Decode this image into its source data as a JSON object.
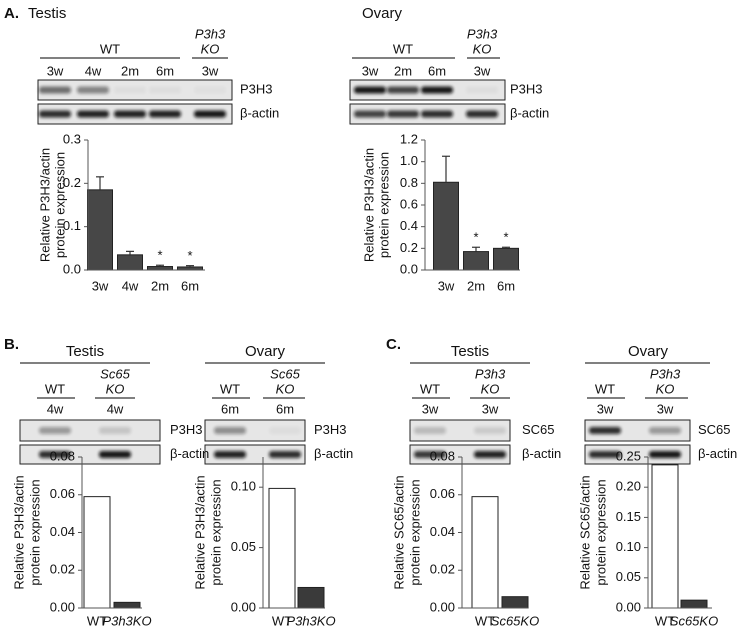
{
  "panel_labels": [
    "A.",
    "B.",
    "C."
  ],
  "blots": [
    {
      "title": "Testis",
      "groups": [
        {
          "label": [
            "WT"
          ],
          "lanes": [
            "3w",
            "4w",
            "2m",
            "6m"
          ]
        },
        {
          "label": [
            "P3h3",
            "KO"
          ],
          "italic": true,
          "lanes": [
            "3w"
          ]
        }
      ],
      "rows": [
        "P3H3",
        "β-actin"
      ]
    },
    {
      "title": "Ovary",
      "groups": [
        {
          "label": [
            "WT"
          ],
          "lanes": [
            "3w",
            "2m",
            "6m"
          ]
        },
        {
          "label": [
            "P3h3",
            "KO"
          ],
          "italic": true,
          "lanes": [
            "3w"
          ]
        }
      ],
      "rows": [
        "P3H3",
        "β-actin"
      ]
    },
    {
      "title": "Testis",
      "groups": [
        {
          "label": [
            "WT"
          ],
          "lanes": [
            "4w"
          ]
        },
        {
          "label": [
            "Sc65",
            "KO"
          ],
          "italic": true,
          "lanes": [
            "4w"
          ]
        }
      ],
      "rows": [
        "P3H3",
        "β-actin"
      ]
    },
    {
      "title": "Ovary",
      "groups": [
        {
          "label": [
            "WT"
          ],
          "lanes": [
            "6m"
          ]
        },
        {
          "label": [
            "Sc65",
            "KO"
          ],
          "italic": true,
          "lanes": [
            "6m"
          ]
        }
      ],
      "rows": [
        "P3H3",
        "β-actin"
      ]
    },
    {
      "title": "Testis",
      "groups": [
        {
          "label": [
            "WT"
          ],
          "lanes": [
            "3w"
          ]
        },
        {
          "label": [
            "P3h3",
            "KO"
          ],
          "italic": true,
          "lanes": [
            "3w"
          ]
        }
      ],
      "rows": [
        "SC65",
        "β-actin"
      ]
    },
    {
      "title": "Ovary",
      "groups": [
        {
          "label": [
            "WT"
          ],
          "lanes": [
            "3w"
          ]
        },
        {
          "label": [
            "P3h3",
            "KO"
          ],
          "italic": true,
          "lanes": [
            "3w"
          ]
        }
      ],
      "rows": [
        "SC65",
        "β-actin"
      ]
    }
  ],
  "chart_data": [
    {
      "type": "bar",
      "y_label": [
        "Relative P3H3/actin",
        "protein expression"
      ],
      "categories": [
        "3w",
        "4w",
        "2m",
        "6m"
      ],
      "values": [
        0.185,
        0.035,
        0.008,
        0.007
      ],
      "errors": [
        0.03,
        0.008,
        0.003,
        0.003
      ],
      "colors": [
        "#474747",
        "#474747",
        "#474747",
        "#474747"
      ],
      "annotations": [
        {
          "category": "2m",
          "text": "*"
        },
        {
          "category": "6m",
          "text": "*"
        }
      ],
      "ylim": [
        0,
        0.3
      ],
      "yticks": [
        {
          "value": 0,
          "label": "0.0"
        },
        0.1,
        0.2,
        0.3
      ]
    },
    {
      "type": "bar",
      "y_label": [
        "Relative P3H3/actin",
        "protein expression"
      ],
      "categories": [
        "3w",
        "2m",
        "6m"
      ],
      "values": [
        0.81,
        0.17,
        0.2
      ],
      "errors": [
        0.24,
        0.04,
        0.01
      ],
      "colors": [
        "#474747",
        "#474747",
        "#474747"
      ],
      "annotations": [
        {
          "category": "2m",
          "text": "*"
        },
        {
          "category": "6m",
          "text": "*"
        }
      ],
      "ylim": [
        0,
        1.2
      ],
      "yticks": [
        {
          "value": 0,
          "label": "0.0"
        },
        0.2,
        0.4,
        0.6,
        0.8,
        {
          "value": 1,
          "label": "1.0"
        },
        1.2
      ]
    },
    {
      "type": "bar",
      "y_label": [
        "Relative P3H3/actin",
        "protein expression"
      ],
      "categories": [
        "WT",
        "P3h3KO"
      ],
      "category_style": [
        "normal",
        "italic"
      ],
      "values": [
        0.059,
        0.003
      ],
      "colors": [
        "#ffffff",
        "#3a3a3a"
      ],
      "ylim": [
        0,
        0.08
      ],
      "yticks": [
        {
          "value": 0,
          "label": "0.00"
        },
        {
          "value": 0.02,
          "label": "0.02"
        },
        {
          "value": 0.04,
          "label": "0.04"
        },
        {
          "value": 0.06,
          "label": "0.06"
        },
        {
          "value": 0.08,
          "label": "0.08"
        }
      ]
    },
    {
      "type": "bar",
      "y_label": [
        "Relative P3H3/actin",
        "protein expression"
      ],
      "categories": [
        "WT",
        "P3h3KO"
      ],
      "category_style": [
        "normal",
        "italic"
      ],
      "values": [
        0.099,
        0.017
      ],
      "colors": [
        "#ffffff",
        "#3a3a3a"
      ],
      "ylim": [
        0,
        0.125
      ],
      "yticks": [
        {
          "value": 0,
          "label": "0.00"
        },
        0.05,
        {
          "value": 0.1,
          "label": "0.10"
        }
      ]
    },
    {
      "type": "bar",
      "y_label": [
        "Relative SC65/actin",
        "protein expression"
      ],
      "categories": [
        "WT",
        "Sc65KO"
      ],
      "category_style": [
        "normal",
        "italic"
      ],
      "values": [
        0.059,
        0.006
      ],
      "colors": [
        "#ffffff",
        "#3a3a3a"
      ],
      "ylim": [
        0,
        0.08
      ],
      "yticks": [
        {
          "value": 0,
          "label": "0.00"
        },
        {
          "value": 0.02,
          "label": "0.02"
        },
        {
          "value": 0.04,
          "label": "0.04"
        },
        {
          "value": 0.06,
          "label": "0.06"
        },
        {
          "value": 0.08,
          "label": "0.08"
        }
      ]
    },
    {
      "type": "bar",
      "y_label": [
        "Relative SC65/actin",
        "protein expression"
      ],
      "categories": [
        "WT",
        "Sc65KO"
      ],
      "category_style": [
        "normal",
        "italic"
      ],
      "values": [
        0.237,
        0.013
      ],
      "colors": [
        "#ffffff",
        "#3a3a3a"
      ],
      "ylim": [
        0,
        0.25
      ],
      "yticks": [
        {
          "value": 0,
          "label": "0.00"
        },
        0.05,
        {
          "value": 0.1,
          "label": "0.10"
        },
        0.15,
        {
          "value": 0.2,
          "label": "0.20"
        },
        0.25
      ]
    }
  ]
}
